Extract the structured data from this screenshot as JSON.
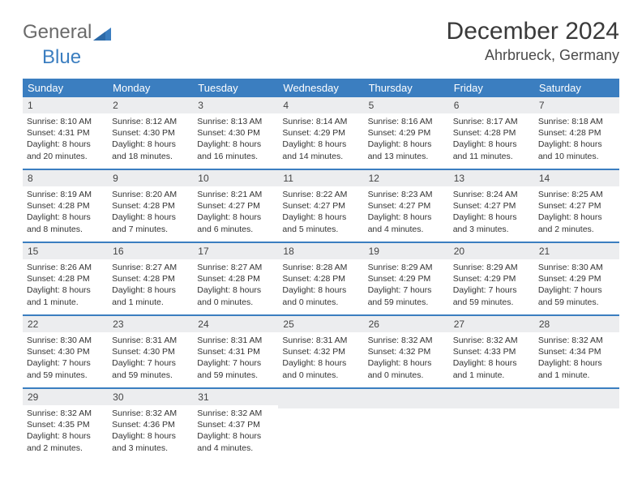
{
  "brand": {
    "part1": "General",
    "part2": "Blue"
  },
  "title": "December 2024",
  "subtitle": "Ahrbrueck, Germany",
  "colors": {
    "accent": "#3b7ec0",
    "header_bg": "#3b7ec0",
    "daynum_bg": "#ecedef",
    "page_bg": "#ffffff"
  },
  "weekdays": [
    "Sunday",
    "Monday",
    "Tuesday",
    "Wednesday",
    "Thursday",
    "Friday",
    "Saturday"
  ],
  "weeks": [
    [
      {
        "n": "1",
        "sr": "8:10 AM",
        "ss": "4:31 PM",
        "dl": "8 hours and 20 minutes."
      },
      {
        "n": "2",
        "sr": "8:12 AM",
        "ss": "4:30 PM",
        "dl": "8 hours and 18 minutes."
      },
      {
        "n": "3",
        "sr": "8:13 AM",
        "ss": "4:30 PM",
        "dl": "8 hours and 16 minutes."
      },
      {
        "n": "4",
        "sr": "8:14 AM",
        "ss": "4:29 PM",
        "dl": "8 hours and 14 minutes."
      },
      {
        "n": "5",
        "sr": "8:16 AM",
        "ss": "4:29 PM",
        "dl": "8 hours and 13 minutes."
      },
      {
        "n": "6",
        "sr": "8:17 AM",
        "ss": "4:28 PM",
        "dl": "8 hours and 11 minutes."
      },
      {
        "n": "7",
        "sr": "8:18 AM",
        "ss": "4:28 PM",
        "dl": "8 hours and 10 minutes."
      }
    ],
    [
      {
        "n": "8",
        "sr": "8:19 AM",
        "ss": "4:28 PM",
        "dl": "8 hours and 8 minutes."
      },
      {
        "n": "9",
        "sr": "8:20 AM",
        "ss": "4:28 PM",
        "dl": "8 hours and 7 minutes."
      },
      {
        "n": "10",
        "sr": "8:21 AM",
        "ss": "4:27 PM",
        "dl": "8 hours and 6 minutes."
      },
      {
        "n": "11",
        "sr": "8:22 AM",
        "ss": "4:27 PM",
        "dl": "8 hours and 5 minutes."
      },
      {
        "n": "12",
        "sr": "8:23 AM",
        "ss": "4:27 PM",
        "dl": "8 hours and 4 minutes."
      },
      {
        "n": "13",
        "sr": "8:24 AM",
        "ss": "4:27 PM",
        "dl": "8 hours and 3 minutes."
      },
      {
        "n": "14",
        "sr": "8:25 AM",
        "ss": "4:27 PM",
        "dl": "8 hours and 2 minutes."
      }
    ],
    [
      {
        "n": "15",
        "sr": "8:26 AM",
        "ss": "4:28 PM",
        "dl": "8 hours and 1 minute."
      },
      {
        "n": "16",
        "sr": "8:27 AM",
        "ss": "4:28 PM",
        "dl": "8 hours and 1 minute."
      },
      {
        "n": "17",
        "sr": "8:27 AM",
        "ss": "4:28 PM",
        "dl": "8 hours and 0 minutes."
      },
      {
        "n": "18",
        "sr": "8:28 AM",
        "ss": "4:28 PM",
        "dl": "8 hours and 0 minutes."
      },
      {
        "n": "19",
        "sr": "8:29 AM",
        "ss": "4:29 PM",
        "dl": "7 hours and 59 minutes."
      },
      {
        "n": "20",
        "sr": "8:29 AM",
        "ss": "4:29 PM",
        "dl": "7 hours and 59 minutes."
      },
      {
        "n": "21",
        "sr": "8:30 AM",
        "ss": "4:29 PM",
        "dl": "7 hours and 59 minutes."
      }
    ],
    [
      {
        "n": "22",
        "sr": "8:30 AM",
        "ss": "4:30 PM",
        "dl": "7 hours and 59 minutes."
      },
      {
        "n": "23",
        "sr": "8:31 AM",
        "ss": "4:30 PM",
        "dl": "7 hours and 59 minutes."
      },
      {
        "n": "24",
        "sr": "8:31 AM",
        "ss": "4:31 PM",
        "dl": "7 hours and 59 minutes."
      },
      {
        "n": "25",
        "sr": "8:31 AM",
        "ss": "4:32 PM",
        "dl": "8 hours and 0 minutes."
      },
      {
        "n": "26",
        "sr": "8:32 AM",
        "ss": "4:32 PM",
        "dl": "8 hours and 0 minutes."
      },
      {
        "n": "27",
        "sr": "8:32 AM",
        "ss": "4:33 PM",
        "dl": "8 hours and 1 minute."
      },
      {
        "n": "28",
        "sr": "8:32 AM",
        "ss": "4:34 PM",
        "dl": "8 hours and 1 minute."
      }
    ],
    [
      {
        "n": "29",
        "sr": "8:32 AM",
        "ss": "4:35 PM",
        "dl": "8 hours and 2 minutes."
      },
      {
        "n": "30",
        "sr": "8:32 AM",
        "ss": "4:36 PM",
        "dl": "8 hours and 3 minutes."
      },
      {
        "n": "31",
        "sr": "8:32 AM",
        "ss": "4:37 PM",
        "dl": "8 hours and 4 minutes."
      },
      null,
      null,
      null,
      null
    ]
  ],
  "labels": {
    "sunrise": "Sunrise:",
    "sunset": "Sunset:",
    "daylight": "Daylight:"
  }
}
